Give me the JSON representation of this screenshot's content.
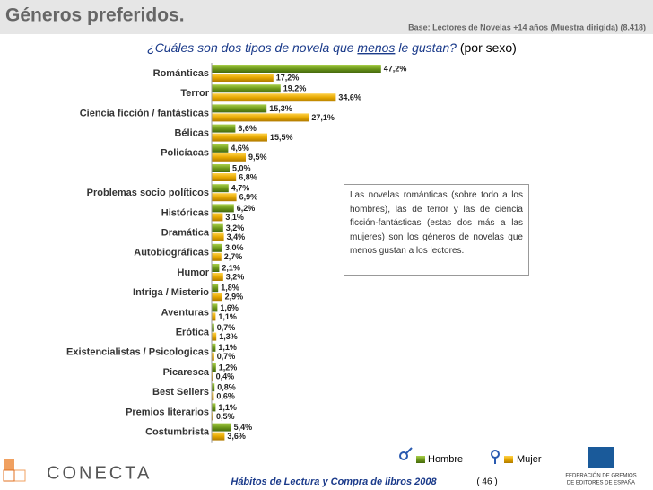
{
  "header": {
    "title": "Géneros preferidos.",
    "base": "Base: Lectores de Novelas +14 años (Muestra dirigida) (8.418)"
  },
  "question": {
    "before": "¿Cuáles son dos tipos de novela que ",
    "emphasis": "menos",
    "after": " le gustan?",
    "note": "(por sexo)"
  },
  "chart_data": {
    "type": "hbar",
    "categories": [
      "Románticas",
      "Terror",
      "Ciencia ficción / fantásticas",
      "Bélicas",
      "Policíacas",
      null,
      "Problemas socio políticos",
      "Históricas",
      "Dramática",
      "Autobiográficas",
      "Humor",
      "Intriga / Misterio",
      "Aventuras",
      "Erótica",
      "Existencialistas / Psicologicas",
      "Picaresca",
      "Best Sellers",
      "Premios literarios",
      "Costumbrista"
    ],
    "series": [
      {
        "name": "Hombre",
        "color": "#6f9a1c",
        "values": [
          47.2,
          19.2,
          15.3,
          6.6,
          4.6,
          5.0,
          4.7,
          6.2,
          3.2,
          3.0,
          2.1,
          1.8,
          1.6,
          0.7,
          1.1,
          1.2,
          0.8,
          1.1,
          5.4
        ],
        "value_labels": [
          "47,2%",
          "19,2%",
          "15,3%",
          "6,6%",
          "4,6%",
          "5,0%",
          "4,7%",
          "6,2%",
          "3,2%",
          "3,0%",
          "2,1%",
          "1,8%",
          "1,6%",
          "0,7%",
          "1,1%",
          "1,2%",
          "0,8%",
          "1,1%",
          "5,4%"
        ]
      },
      {
        "name": "Mujer",
        "color": "#e6a800",
        "values": [
          17.2,
          34.6,
          27.1,
          15.5,
          9.5,
          6.8,
          6.9,
          3.1,
          3.4,
          2.7,
          3.2,
          2.9,
          1.1,
          1.3,
          0.7,
          0.4,
          0.6,
          0.5,
          3.6
        ],
        "value_labels": [
          "17,2%",
          "34,6%",
          "27,1%",
          "15,5%",
          "9,5%",
          "6,8%",
          "6,9%",
          "3,1%",
          "3,4%",
          "2,7%",
          "3,2%",
          "2,9%",
          "1,1%",
          "1,3%",
          "0,7%",
          "0,4%",
          "0,6%",
          "0,5%",
          "3,6%"
        ]
      }
    ],
    "annotation": "Las novelas románticas (sobre todo a los hombres), las de terror y las de ciencia ficción-fantásticas (estas dos más a las mujeres) son los géneros de novelas que menos gustan a los lectores."
  },
  "footer": {
    "logo": "CONECTA",
    "publication": "Hábitos de Lectura y Compra de libros 2008",
    "page": "( 46 )",
    "federation": [
      "FEDERACIÓN DE GREMIOS",
      "DE EDITORES DE ESPAÑA"
    ]
  }
}
